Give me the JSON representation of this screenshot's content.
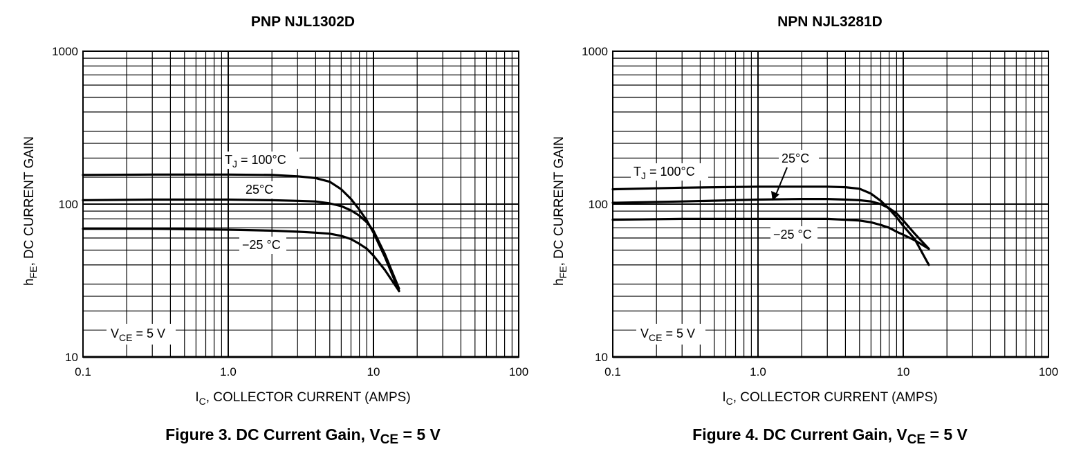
{
  "chart_data": [
    {
      "type": "line",
      "title": "PNP NJL1302D",
      "caption": {
        "main": "Figure 3. DC Current Gain, V",
        "sub": "CE",
        "tail": " = 5 V"
      },
      "xlabel": {
        "main": "I",
        "sub": "C",
        "tail": ", COLLECTOR CURRENT (AMPS)"
      },
      "ylabel": {
        "main": "h",
        "sub": "FE",
        "tail": ", DC CURRENT GAIN"
      },
      "x_scale": "log",
      "y_scale": "log",
      "xlim": [
        0.1,
        100
      ],
      "ylim": [
        10,
        1000
      ],
      "grid": true,
      "x_ticks": [
        "0.1",
        "1.0",
        "10",
        "100"
      ],
      "y_ticks": [
        "10",
        "100",
        "1000"
      ],
      "condition": {
        "main": "V",
        "sub": "CE",
        "tail": " = 5 V"
      },
      "series": [
        {
          "name": "T_J = 100°C",
          "x": [
            0.1,
            0.3,
            1,
            2,
            3,
            4,
            5,
            6,
            7,
            8,
            9,
            10,
            12,
            15
          ],
          "y": [
            155,
            156,
            156,
            155,
            152,
            148,
            140,
            125,
            108,
            92,
            78,
            65,
            45,
            27
          ]
        },
        {
          "name": "25°C",
          "x": [
            0.1,
            0.3,
            1,
            2,
            3,
            4,
            5,
            6,
            7,
            8,
            9,
            10,
            12,
            15
          ],
          "y": [
            106,
            107,
            107,
            106,
            105,
            104,
            101,
            97,
            91,
            84,
            76,
            67,
            47,
            28
          ]
        },
        {
          "name": "-25°C",
          "x": [
            0.1,
            0.3,
            1,
            2,
            3,
            4,
            5,
            6,
            7,
            8,
            9,
            10,
            12,
            15
          ],
          "y": [
            69,
            69,
            68,
            67,
            66,
            65,
            64,
            62,
            59,
            55,
            51,
            46,
            37,
            27
          ]
        }
      ],
      "annotations": [
        {
          "main": "T",
          "sub": "J",
          "tail": " = 100°C"
        },
        {
          "main": "25°C",
          "sub": "",
          "tail": ""
        },
        {
          "main": "−25 °C",
          "sub": "",
          "tail": ""
        }
      ]
    },
    {
      "type": "line",
      "title": "NPN NJL3281D",
      "caption": {
        "main": "Figure 4. DC Current Gain, V",
        "sub": "CE",
        "tail": " = 5 V"
      },
      "xlabel": {
        "main": "I",
        "sub": "C",
        "tail": ", COLLECTOR CURRENT (AMPS)"
      },
      "ylabel": {
        "main": "h",
        "sub": "FE",
        "tail": ", DC CURRENT GAIN"
      },
      "x_scale": "log",
      "y_scale": "log",
      "xlim": [
        0.1,
        100
      ],
      "ylim": [
        10,
        1000
      ],
      "grid": true,
      "x_ticks": [
        "0.1",
        "1.0",
        "10",
        "100"
      ],
      "y_ticks": [
        "10",
        "100",
        "1000"
      ],
      "condition": {
        "main": "V",
        "sub": "CE",
        "tail": " = 5 V"
      },
      "series": [
        {
          "name": "T_J = 100°C",
          "x": [
            0.1,
            0.3,
            1,
            2,
            3,
            4,
            5,
            6,
            7,
            8,
            9,
            10,
            12,
            15
          ],
          "y": [
            125,
            128,
            130,
            130,
            130,
            129,
            126,
            117,
            105,
            93,
            82,
            72,
            59,
            40
          ]
        },
        {
          "name": "25°C",
          "x": [
            0.1,
            0.3,
            1,
            2,
            3,
            4,
            5,
            6,
            7,
            8,
            9,
            10,
            12,
            15
          ],
          "y": [
            102,
            104,
            107,
            108,
            108,
            107,
            106,
            104,
            100,
            94,
            87,
            78,
            64,
            51
          ]
        },
        {
          "name": "-25°C",
          "x": [
            0.1,
            0.3,
            1,
            2,
            3,
            4,
            5,
            6,
            7,
            8,
            9,
            10,
            12,
            15
          ],
          "y": [
            79,
            80,
            80,
            80,
            80,
            79,
            78,
            76,
            73,
            70,
            66,
            63,
            58,
            51
          ]
        }
      ],
      "annotations": [
        {
          "main": "T",
          "sub": "J",
          "tail": " = 100°C"
        },
        {
          "main": "25°C",
          "sub": "",
          "tail": ""
        },
        {
          "main": "−25 °C",
          "sub": "",
          "tail": ""
        }
      ]
    }
  ]
}
